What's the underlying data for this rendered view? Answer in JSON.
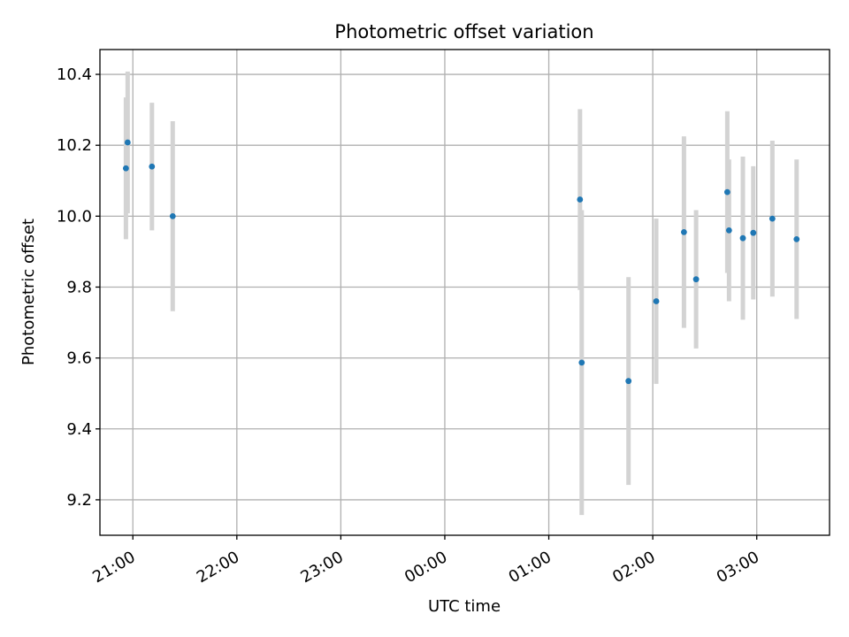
{
  "chart_data": {
    "type": "scatter",
    "title": "Photometric offset variation",
    "xlabel": "UTC time",
    "ylabel": "Photometric offset",
    "x_axis_type": "time",
    "xlim": [
      "20:41",
      "03:42"
    ],
    "ylim": [
      9.1,
      10.47
    ],
    "x_ticks": [
      "21:00",
      "22:00",
      "23:00",
      "00:00",
      "01:00",
      "02:00",
      "03:00"
    ],
    "y_ticks": [
      "9.2",
      "9.4",
      "9.6",
      "9.8",
      "10.0",
      "10.2",
      "10.4"
    ],
    "grid": true,
    "marker_color": "#1f77b4",
    "errorbar_color": "#d3d3d3",
    "points": [
      {
        "t": "20:56",
        "y": 10.135,
        "err": 0.2
      },
      {
        "t": "20:57",
        "y": 10.208,
        "err": 0.2
      },
      {
        "t": "21:11",
        "y": 10.14,
        "err": 0.18
      },
      {
        "t": "21:23",
        "y": 10.0,
        "err": 0.268
      },
      {
        "t": "01:18",
        "y": 10.047,
        "err": 0.255
      },
      {
        "t": "01:19",
        "y": 9.587,
        "err": 0.43
      },
      {
        "t": "01:46",
        "y": 9.535,
        "err": 0.293
      },
      {
        "t": "02:02",
        "y": 9.76,
        "err": 0.233
      },
      {
        "t": "02:18",
        "y": 9.955,
        "err": 0.27
      },
      {
        "t": "02:25",
        "y": 9.822,
        "err": 0.195
      },
      {
        "t": "02:43",
        "y": 10.068,
        "err": 0.228
      },
      {
        "t": "02:44",
        "y": 9.96,
        "err": 0.2
      },
      {
        "t": "02:52",
        "y": 9.938,
        "err": 0.23
      },
      {
        "t": "02:58",
        "y": 9.953,
        "err": 0.188
      },
      {
        "t": "03:09",
        "y": 9.993,
        "err": 0.22
      },
      {
        "t": "03:23",
        "y": 9.935,
        "err": 0.225
      }
    ]
  }
}
